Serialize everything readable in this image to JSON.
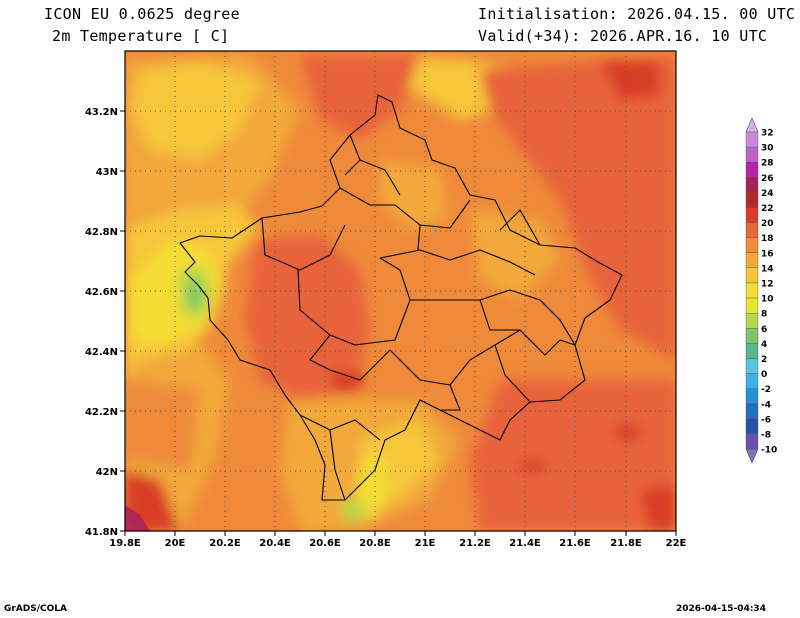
{
  "header": {
    "model": "ICON EU 0.0625 degree",
    "variable": "2m Temperature [ C]",
    "init": "Initialisation: 2026.04.15. 00 UTC",
    "valid": "Valid(+34): 2026.APR.16. 10 UTC"
  },
  "footer": {
    "credit": "GrADS/COLA",
    "timestamp": "2026-04-15-04:34"
  },
  "map": {
    "lon_labels": [
      "19.8E",
      "20E",
      "20.2E",
      "20.4E",
      "20.6E",
      "20.8E",
      "21E",
      "21.2E",
      "21.4E",
      "21.6E",
      "21.8E",
      "22E"
    ],
    "lat_labels": [
      "43.2N",
      "43N",
      "42.8N",
      "42.6N",
      "42.4N",
      "42.2N",
      "42N",
      "41.8N"
    ],
    "lon_range": [
      19.8,
      22.0
    ],
    "lat_range": [
      41.8,
      43.4
    ],
    "grid": "dotted"
  },
  "colorbar": {
    "levels": [
      "32",
      "30",
      "28",
      "26",
      "24",
      "22",
      "20",
      "18",
      "16",
      "14",
      "12",
      "10",
      "8",
      "6",
      "4",
      "2",
      "0",
      "-2",
      "-4",
      "-6",
      "-8",
      "-10"
    ],
    "colors": [
      "#d8b0e6",
      "#c88ad8",
      "#c060c8",
      "#b820b0",
      "#a8205a",
      "#b8282a",
      "#d83c28",
      "#e8643a",
      "#ef8a3a",
      "#f2a83a",
      "#f6c63a",
      "#f4dc34",
      "#e8e82a",
      "#b4d84a",
      "#7cc66a",
      "#58b88c",
      "#5cc4d8",
      "#40b0e8",
      "#2890d8",
      "#2070c0",
      "#2a50a8",
      "#6a50b0",
      "#8a6ac4"
    ]
  }
}
